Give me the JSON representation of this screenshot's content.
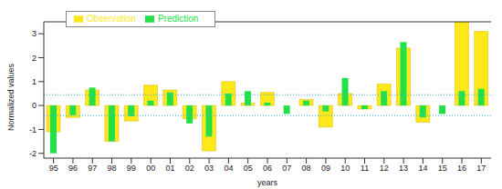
{
  "chart_data": {
    "type": "bar",
    "x_label": "years",
    "y_label": "Normalized values",
    "categories": [
      "95",
      "96",
      "97",
      "98",
      "99",
      "00",
      "01",
      "02",
      "03",
      "04",
      "05",
      "06",
      "07",
      "08",
      "09",
      "10",
      "11",
      "12",
      "13",
      "14",
      "15",
      "16",
      "17"
    ],
    "series": [
      {
        "name": "Observation",
        "color": "#ffe81a",
        "values": [
          -1.1,
          -0.5,
          0.65,
          -1.5,
          -0.65,
          0.85,
          0.65,
          -0.55,
          -1.9,
          1.0,
          0.1,
          0.55,
          0.0,
          0.25,
          -0.9,
          0.5,
          -0.15,
          0.9,
          2.4,
          -0.7,
          0.0,
          3.5,
          3.1
        ]
      },
      {
        "name": "Prediction",
        "color": "#22e048",
        "values": [
          -2.0,
          -0.4,
          0.75,
          -1.5,
          -0.45,
          0.2,
          0.55,
          -0.75,
          -1.3,
          0.5,
          0.6,
          0.12,
          -0.35,
          0.2,
          -0.25,
          1.15,
          -0.15,
          0.6,
          2.65,
          -0.5,
          -0.35,
          0.6,
          0.7
        ]
      }
    ],
    "threshold_lines": [
      -0.42,
      0.45
    ],
    "ylim": [
      -2.2,
      3.5
    ],
    "yticks": [
      -2,
      -1,
      0,
      1,
      2,
      3
    ],
    "grid": false,
    "legend": "upper left"
  }
}
